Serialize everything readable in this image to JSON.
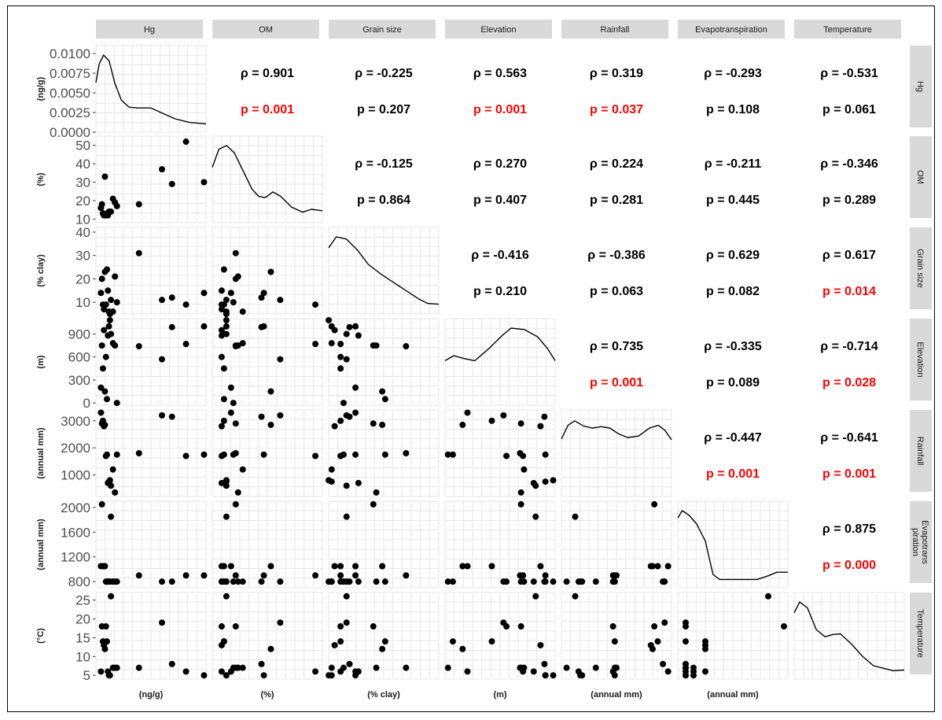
{
  "chart_data": {
    "type": "scatter-matrix",
    "title": "",
    "variables": [
      "Hg",
      "OM",
      "Grain size",
      "Elevation",
      "Rainfall",
      "Evapotranspiration",
      "Temperature"
    ],
    "strip_labels_top": [
      "Hg",
      "OM",
      "Grain size",
      "Elevation",
      "Rainfall",
      "Evapotranspiration",
      "Temperature"
    ],
    "strip_labels_right": [
      [
        "Hg"
      ],
      [
        "OM"
      ],
      [
        "Grain size"
      ],
      [
        "Elevation"
      ],
      [
        "Rainfall"
      ],
      [
        "Evapotrans",
        "piration"
      ],
      [
        "Temperature"
      ]
    ],
    "units": [
      "(ng/g)",
      "(%)",
      "(% clay)",
      "(m)",
      "(annual mm)",
      "(annual mm)",
      "(°C)"
    ],
    "x_axis_labels": [
      "(ng/g)",
      "(%)",
      "(% clay)",
      "(m)",
      "(annual mm)",
      "(annual mm)"
    ],
    "y_ranges": [
      [
        0,
        0.011
      ],
      [
        8,
        55
      ],
      [
        5,
        42
      ],
      [
        -30,
        1100
      ],
      [
        200,
        3400
      ],
      [
        700,
        2100
      ],
      [
        4,
        27
      ]
    ],
    "y_ticks": [
      [
        "0.0000",
        "0.0025",
        "0.0050",
        "0.0075",
        "0.0100"
      ],
      [
        "10",
        "20",
        "30",
        "40",
        "50"
      ],
      [
        "10",
        "20",
        "30",
        "40"
      ],
      [
        "0",
        "300",
        "600",
        "900"
      ],
      [
        "1000",
        "2000",
        "3000"
      ],
      [
        "800",
        "1200",
        "1600",
        "2000"
      ],
      [
        "5",
        "10",
        "15",
        "20",
        "25"
      ]
    ],
    "y_tick_values": [
      [
        0,
        0.0025,
        0.005,
        0.0075,
        0.01
      ],
      [
        10,
        20,
        30,
        40,
        50
      ],
      [
        10,
        20,
        30,
        40
      ],
      [
        0,
        300,
        600,
        900
      ],
      [
        1000,
        2000,
        3000
      ],
      [
        800,
        1200,
        1600,
        2000
      ],
      [
        5,
        10,
        15,
        20,
        25
      ]
    ],
    "observations": {
      "Hg": [
        0.0005,
        0.0006,
        0.0007,
        0.0008,
        0.0009,
        0.001,
        0.0011,
        0.0012,
        0.0013,
        0.0014,
        0.0015,
        0.0017,
        0.0019,
        0.0021,
        0.0043,
        0.0066,
        0.0076,
        0.009,
        0.0108
      ],
      "OM": [
        16,
        18,
        13,
        12,
        33,
        12,
        13,
        12,
        14,
        14,
        14,
        21,
        19,
        17,
        18,
        37,
        29,
        52,
        30
      ],
      "Grain size": [
        14,
        20,
        9,
        7,
        23,
        9,
        24,
        15,
        6,
        5,
        11,
        6,
        21,
        10,
        31,
        11,
        12,
        9,
        14
      ],
      "Elevation": [
        200,
        750,
        450,
        950,
        150,
        600,
        50,
        880,
        1000,
        1080,
        900,
        780,
        750,
        0,
        740,
        570,
        990,
        770,
        1000
      ],
      "Rainfall": [
        3300,
        2900,
        3000,
        2800,
        2850,
        1700,
        1750,
        700,
        750,
        800,
        600,
        1200,
        350,
        1750,
        1800,
        3200,
        3150,
        1700,
        1750
      ],
      "Evapotranspiration": [
        1050,
        2050,
        1050,
        1050,
        1050,
        800,
        800,
        800,
        800,
        800,
        1850,
        800,
        800,
        800,
        900,
        800,
        800,
        900,
        900
      ],
      "Temperature": [
        6,
        18,
        14,
        13,
        12,
        18,
        14,
        6,
        5,
        5,
        26,
        7,
        7,
        7,
        7,
        19,
        8,
        6,
        5
      ]
    },
    "density_curves": [
      [
        [
          0.0,
          0.62
        ],
        [
          0.03,
          0.88
        ],
        [
          0.07,
          1.0
        ],
        [
          0.12,
          0.92
        ],
        [
          0.17,
          0.62
        ],
        [
          0.23,
          0.38
        ],
        [
          0.3,
          0.28
        ],
        [
          0.38,
          0.27
        ],
        [
          0.5,
          0.27
        ],
        [
          0.6,
          0.2
        ],
        [
          0.72,
          0.12
        ],
        [
          0.85,
          0.07
        ],
        [
          1.0,
          0.05
        ]
      ],
      [
        [
          0.0,
          0.7
        ],
        [
          0.06,
          0.95
        ],
        [
          0.13,
          1.0
        ],
        [
          0.2,
          0.9
        ],
        [
          0.28,
          0.65
        ],
        [
          0.36,
          0.4
        ],
        [
          0.42,
          0.3
        ],
        [
          0.48,
          0.28
        ],
        [
          0.55,
          0.36
        ],
        [
          0.62,
          0.3
        ],
        [
          0.72,
          0.15
        ],
        [
          0.82,
          0.08
        ],
        [
          0.9,
          0.12
        ],
        [
          1.0,
          0.1
        ]
      ],
      [
        [
          0.0,
          0.85
        ],
        [
          0.07,
          1.0
        ],
        [
          0.16,
          0.97
        ],
        [
          0.26,
          0.82
        ],
        [
          0.36,
          0.62
        ],
        [
          0.48,
          0.48
        ],
        [
          0.6,
          0.36
        ],
        [
          0.72,
          0.24
        ],
        [
          0.82,
          0.14
        ],
        [
          0.9,
          0.08
        ],
        [
          1.0,
          0.07
        ]
      ],
      [
        [
          0.0,
          0.55
        ],
        [
          0.08,
          0.62
        ],
        [
          0.17,
          0.58
        ],
        [
          0.27,
          0.55
        ],
        [
          0.4,
          0.72
        ],
        [
          0.52,
          0.9
        ],
        [
          0.6,
          1.0
        ],
        [
          0.72,
          0.98
        ],
        [
          0.84,
          0.88
        ],
        [
          0.93,
          0.72
        ],
        [
          1.0,
          0.55
        ]
      ],
      [
        [
          0.0,
          0.73
        ],
        [
          0.06,
          0.92
        ],
        [
          0.12,
          0.98
        ],
        [
          0.2,
          0.91
        ],
        [
          0.28,
          0.88
        ],
        [
          0.36,
          0.9
        ],
        [
          0.44,
          0.88
        ],
        [
          0.52,
          0.8
        ],
        [
          0.6,
          0.75
        ],
        [
          0.7,
          0.77
        ],
        [
          0.8,
          0.88
        ],
        [
          0.88,
          0.92
        ],
        [
          0.94,
          0.85
        ],
        [
          1.0,
          0.72
        ]
      ],
      [
        [
          0.0,
          0.9
        ],
        [
          0.04,
          1.0
        ],
        [
          0.1,
          0.94
        ],
        [
          0.17,
          0.82
        ],
        [
          0.25,
          0.58
        ],
        [
          0.32,
          0.12
        ],
        [
          0.38,
          0.05
        ],
        [
          0.5,
          0.05
        ],
        [
          0.62,
          0.05
        ],
        [
          0.72,
          0.05
        ],
        [
          0.82,
          0.1
        ],
        [
          0.9,
          0.15
        ],
        [
          1.0,
          0.15
        ]
      ],
      [
        [
          0.0,
          0.85
        ],
        [
          0.05,
          1.0
        ],
        [
          0.12,
          0.92
        ],
        [
          0.2,
          0.62
        ],
        [
          0.28,
          0.52
        ],
        [
          0.35,
          0.55
        ],
        [
          0.42,
          0.56
        ],
        [
          0.52,
          0.42
        ],
        [
          0.62,
          0.25
        ],
        [
          0.72,
          0.12
        ],
        [
          0.82,
          0.08
        ],
        [
          0.9,
          0.05
        ],
        [
          1.0,
          0.06
        ]
      ]
    ],
    "correlations": [
      {
        "row": 0,
        "col": 1,
        "rho": "ρ = 0.901",
        "p": "p = 0.001",
        "significant": true
      },
      {
        "row": 0,
        "col": 2,
        "rho": "ρ = -0.225",
        "p": "p = 0.207",
        "significant": false
      },
      {
        "row": 0,
        "col": 3,
        "rho": "ρ = 0.563",
        "p": "p = 0.001",
        "significant": true
      },
      {
        "row": 0,
        "col": 4,
        "rho": "ρ = 0.319",
        "p": "p = 0.037",
        "significant": true
      },
      {
        "row": 0,
        "col": 5,
        "rho": "ρ = -0.293",
        "p": "p = 0.108",
        "significant": false
      },
      {
        "row": 0,
        "col": 6,
        "rho": "ρ = -0.531",
        "p": "p = 0.061",
        "significant": false
      },
      {
        "row": 1,
        "col": 2,
        "rho": "ρ = -0.125",
        "p": "p = 0.864",
        "significant": false
      },
      {
        "row": 1,
        "col": 3,
        "rho": "ρ = 0.270",
        "p": "p = 0.407",
        "significant": false
      },
      {
        "row": 1,
        "col": 4,
        "rho": "ρ = 0.224",
        "p": "p = 0.281",
        "significant": false
      },
      {
        "row": 1,
        "col": 5,
        "rho": "ρ = -0.211",
        "p": "p = 0.445",
        "significant": false
      },
      {
        "row": 1,
        "col": 6,
        "rho": "ρ = -0.346",
        "p": "p = 0.289",
        "significant": false
      },
      {
        "row": 2,
        "col": 3,
        "rho": "ρ = -0.416",
        "p": "p = 0.210",
        "significant": false
      },
      {
        "row": 2,
        "col": 4,
        "rho": "ρ = -0.386",
        "p": "p = 0.063",
        "significant": false
      },
      {
        "row": 2,
        "col": 5,
        "rho": "ρ = 0.629",
        "p": "p = 0.082",
        "significant": false
      },
      {
        "row": 2,
        "col": 6,
        "rho": "ρ = 0.617",
        "p": "p = 0.014",
        "significant": true
      },
      {
        "row": 3,
        "col": 4,
        "rho": "ρ = 0.735",
        "p": "p = 0.001",
        "significant": true
      },
      {
        "row": 3,
        "col": 5,
        "rho": "ρ = -0.335",
        "p": "p = 0.089",
        "significant": false
      },
      {
        "row": 3,
        "col": 6,
        "rho": "ρ = -0.714",
        "p": "p = 0.028",
        "significant": true
      },
      {
        "row": 4,
        "col": 5,
        "rho": "ρ = -0.447",
        "p": "p = 0.001",
        "significant": true
      },
      {
        "row": 4,
        "col": 6,
        "rho": "ρ = -0.641",
        "p": "p = 0.001",
        "significant": true
      },
      {
        "row": 5,
        "col": 6,
        "rho": "ρ = 0.875",
        "p": "p = 0.000",
        "significant": true
      }
    ],
    "grid": true,
    "colors": {
      "point": "#000000",
      "line": "#000000",
      "grid": "#e6e6e6",
      "strip": "#d9d9d9",
      "significant": "#ff0000",
      "text": "#000000",
      "tick": "#4d4d4d"
    }
  }
}
